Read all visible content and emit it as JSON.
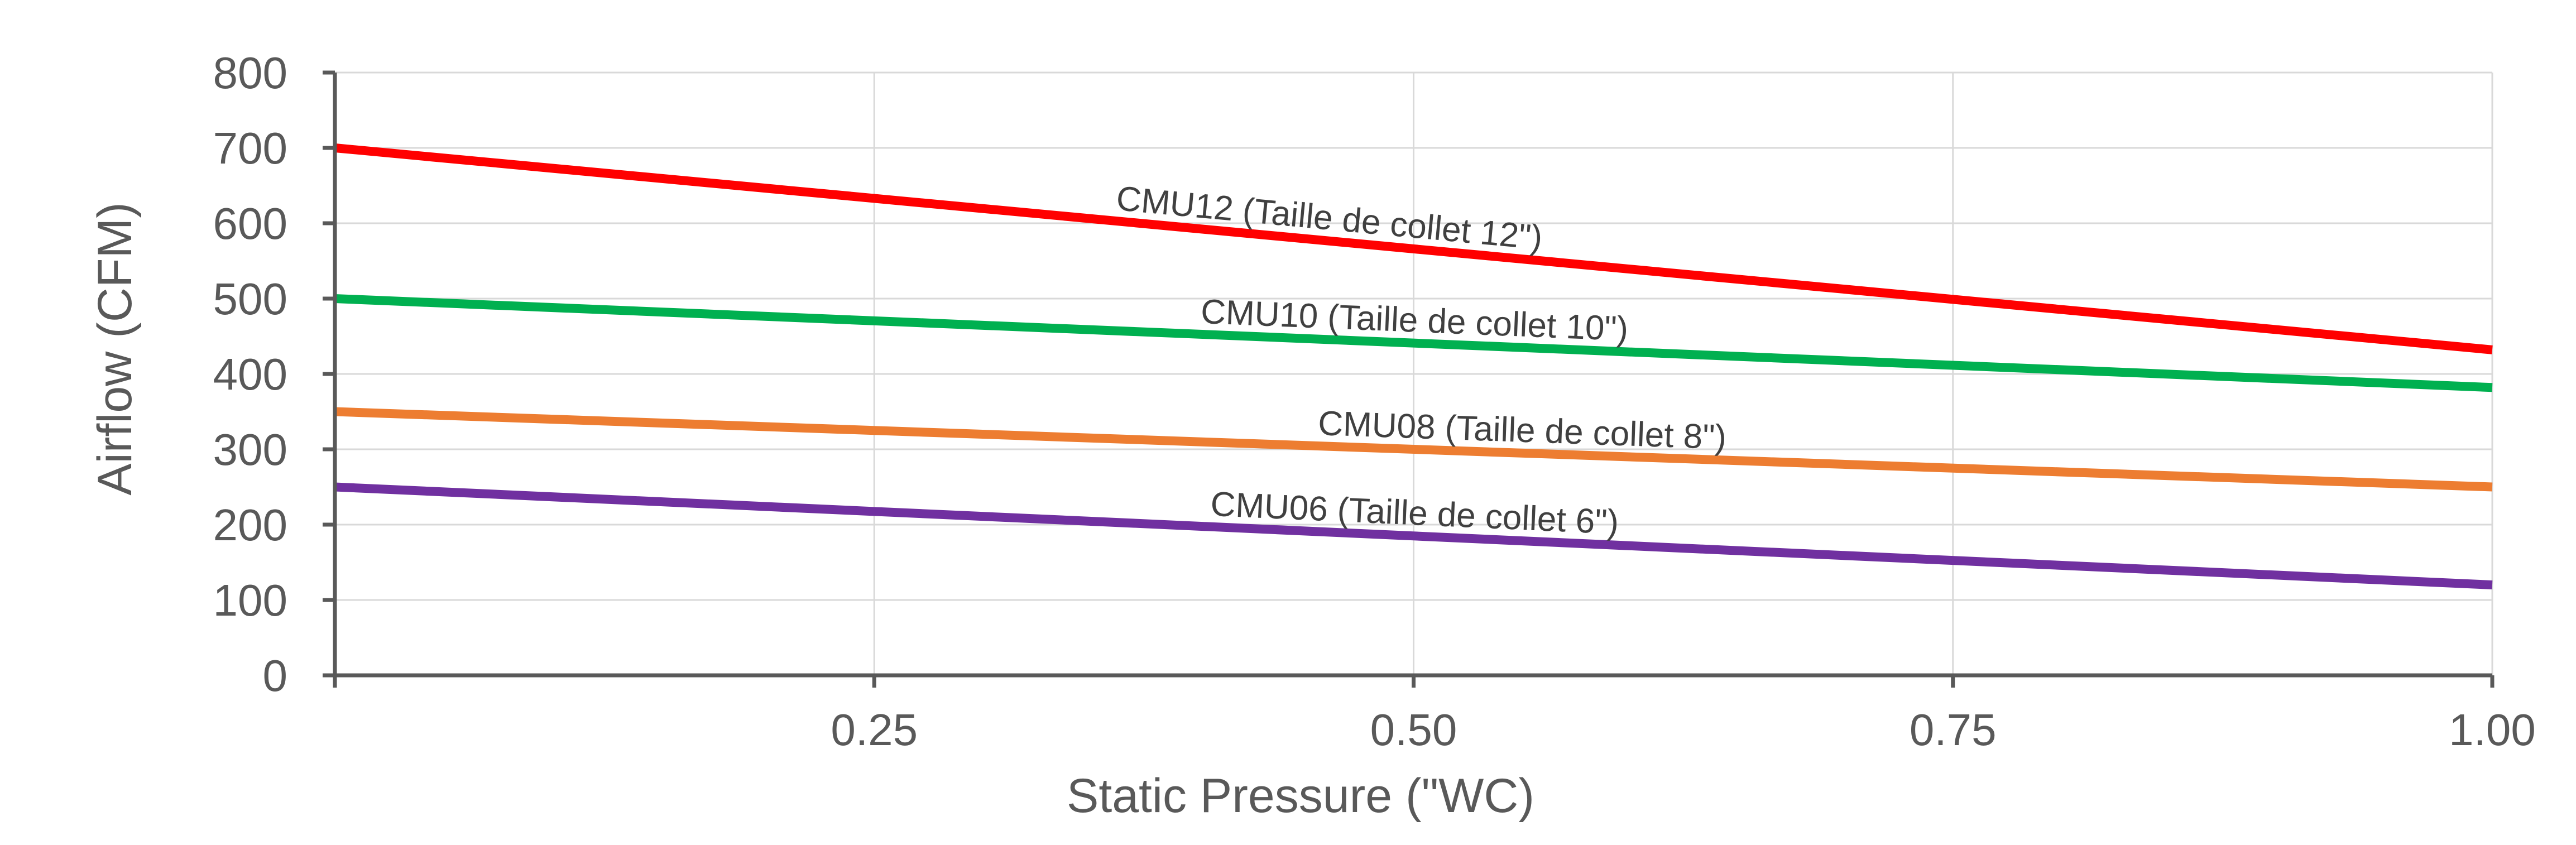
{
  "chart_data": {
    "type": "line",
    "title": "",
    "xlabel": "Static Pressure (\"WC)",
    "ylabel": "Airflow (CFM)",
    "xlim": [
      0,
      1.0
    ],
    "ylim": [
      0,
      800
    ],
    "x_ticks": [
      0.25,
      0.5,
      0.75,
      1.0
    ],
    "x_tick_labels": [
      "0.25",
      "0.50",
      "0.75",
      "1.00"
    ],
    "y_ticks": [
      0,
      100,
      200,
      300,
      400,
      500,
      600,
      700,
      800
    ],
    "y_tick_labels": [
      "0",
      "100",
      "200",
      "300",
      "400",
      "500",
      "600",
      "700",
      "800"
    ],
    "grid": true,
    "legend": "none",
    "series": [
      {
        "name": "CMU12 (Taille de collet 12\")",
        "color": "#ff0000",
        "x": [
          0,
          1.0
        ],
        "y": [
          700,
          432
        ],
        "label_at": 0.46
      },
      {
        "name": "CMU10 (Taille de collet 10\")",
        "color": "#00b050",
        "x": [
          0,
          1.0
        ],
        "y": [
          500,
          382
        ],
        "label_at": 0.5
      },
      {
        "name": "CMU08 (Taille de collet 8\")",
        "color": "#ed7d31",
        "x": [
          0,
          1.0
        ],
        "y": [
          350,
          250
        ],
        "label_at": 0.55
      },
      {
        "name": "CMU06 (Taille de collet 6\")",
        "color": "#7030a0",
        "x": [
          0,
          1.0
        ],
        "y": [
          250,
          120
        ],
        "label_at": 0.5
      }
    ]
  }
}
